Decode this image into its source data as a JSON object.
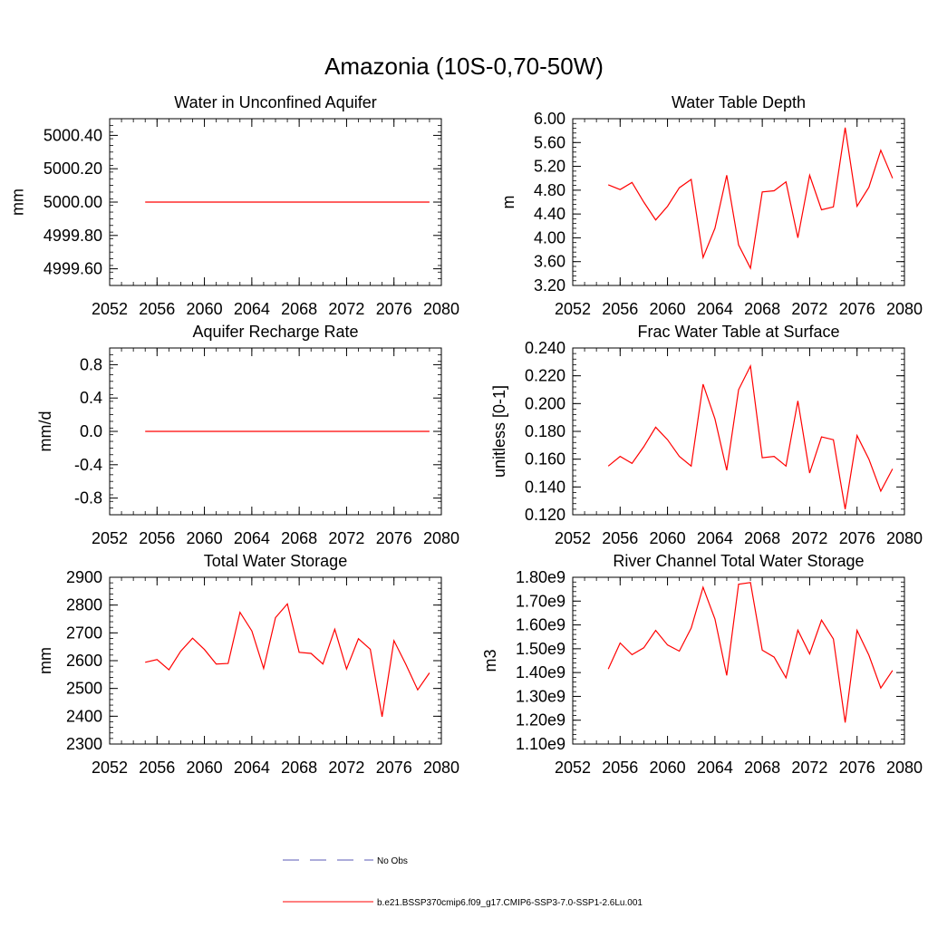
{
  "figure_title": "Amazonia (10S-0,70-50W)",
  "legend": {
    "entries": [
      {
        "label": "No Obs",
        "style": "dashed",
        "color": "#5a5ab4"
      },
      {
        "label": "b.e21.BSSP370cmip6.f09_g17.CMIP6-SSP3-7.0-SSP1-2.6Lu.001",
        "style": "solid",
        "color": "#ff0000"
      }
    ]
  },
  "chart_data": [
    {
      "type": "line",
      "title": "Water in Unconfined Aquifer",
      "ylabel": "mm",
      "xlim": [
        2052,
        2080
      ],
      "ylim": [
        4999.5,
        5000.5
      ],
      "xticks": [
        2052,
        2056,
        2060,
        2064,
        2068,
        2072,
        2076,
        2080
      ],
      "xtick_labels": [
        "2052",
        "2056",
        "2060",
        "2064",
        "2068",
        "2072",
        "2076",
        "2080"
      ],
      "yticks": [
        4999.6,
        4999.8,
        5000.0,
        5000.2,
        5000.4
      ],
      "ytick_labels": [
        "4999.60",
        "4999.80",
        "5000.00",
        "5000.20",
        "5000.40"
      ],
      "series": [
        {
          "color": "#ff0000",
          "x": [
            2055,
            2056,
            2057,
            2058,
            2059,
            2060,
            2061,
            2062,
            2063,
            2064,
            2065,
            2066,
            2067,
            2068,
            2069,
            2070,
            2071,
            2072,
            2073,
            2074,
            2075,
            2076,
            2077,
            2078,
            2079
          ],
          "values": [
            5000,
            5000,
            5000,
            5000,
            5000,
            5000,
            5000,
            5000,
            5000,
            5000,
            5000,
            5000,
            5000,
            5000,
            5000,
            5000,
            5000,
            5000,
            5000,
            5000,
            5000,
            5000,
            5000,
            5000,
            5000
          ]
        }
      ]
    },
    {
      "type": "line",
      "title": "Water Table Depth",
      "ylabel": "m",
      "xlim": [
        2052,
        2080
      ],
      "ylim": [
        3.2,
        6.0
      ],
      "xticks": [
        2052,
        2056,
        2060,
        2064,
        2068,
        2072,
        2076,
        2080
      ],
      "xtick_labels": [
        "2052",
        "2056",
        "2060",
        "2064",
        "2068",
        "2072",
        "2076",
        "2080"
      ],
      "yticks": [
        3.2,
        3.6,
        4.0,
        4.4,
        4.8,
        5.2,
        5.6,
        6.0
      ],
      "ytick_labels": [
        "3.20",
        "3.60",
        "4.00",
        "4.40",
        "4.80",
        "5.20",
        "5.60",
        "6.00"
      ],
      "series": [
        {
          "color": "#ff0000",
          "x": [
            2055,
            2056,
            2057,
            2058,
            2059,
            2060,
            2061,
            2062,
            2063,
            2064,
            2065,
            2066,
            2067,
            2068,
            2069,
            2070,
            2071,
            2072,
            2073,
            2074,
            2075,
            2076,
            2077,
            2078,
            2079
          ],
          "values": [
            4.89,
            4.81,
            4.93,
            4.6,
            4.3,
            4.53,
            4.84,
            4.98,
            3.67,
            4.16,
            5.05,
            3.88,
            3.49,
            4.77,
            4.79,
            4.94,
            4.0,
            5.05,
            4.47,
            4.52,
            5.85,
            4.53,
            4.85,
            5.47,
            5.0
          ]
        }
      ]
    },
    {
      "type": "line",
      "title": "Aquifer Recharge Rate",
      "ylabel": "mm/d",
      "xlim": [
        2052,
        2080
      ],
      "ylim": [
        -1.0,
        1.0
      ],
      "xticks": [
        2052,
        2056,
        2060,
        2064,
        2068,
        2072,
        2076,
        2080
      ],
      "xtick_labels": [
        "2052",
        "2056",
        "2060",
        "2064",
        "2068",
        "2072",
        "2076",
        "2080"
      ],
      "yticks": [
        -0.8,
        -0.4,
        0.0,
        0.4,
        0.8
      ],
      "ytick_labels": [
        "-0.8",
        "-0.4",
        "0.0",
        "0.4",
        "0.8"
      ],
      "series": [
        {
          "color": "#ff0000",
          "x": [
            2055,
            2056,
            2057,
            2058,
            2059,
            2060,
            2061,
            2062,
            2063,
            2064,
            2065,
            2066,
            2067,
            2068,
            2069,
            2070,
            2071,
            2072,
            2073,
            2074,
            2075,
            2076,
            2077,
            2078,
            2079
          ],
          "values": [
            0,
            0,
            0,
            0,
            0,
            0,
            0,
            0,
            0,
            0,
            0,
            0,
            0,
            0,
            0,
            0,
            0,
            0,
            0,
            0,
            0,
            0,
            0,
            0,
            0
          ]
        }
      ]
    },
    {
      "type": "line",
      "title": "Frac Water Table at Surface",
      "ylabel": "unitless [0-1]",
      "xlim": [
        2052,
        2080
      ],
      "ylim": [
        0.12,
        0.24
      ],
      "xticks": [
        2052,
        2056,
        2060,
        2064,
        2068,
        2072,
        2076,
        2080
      ],
      "xtick_labels": [
        "2052",
        "2056",
        "2060",
        "2064",
        "2068",
        "2072",
        "2076",
        "2080"
      ],
      "yticks": [
        0.12,
        0.14,
        0.16,
        0.18,
        0.2,
        0.22,
        0.24
      ],
      "ytick_labels": [
        "0.120",
        "0.140",
        "0.160",
        "0.180",
        "0.200",
        "0.220",
        "0.240"
      ],
      "series": [
        {
          "color": "#ff0000",
          "x": [
            2055,
            2056,
            2057,
            2058,
            2059,
            2060,
            2061,
            2062,
            2063,
            2064,
            2065,
            2066,
            2067,
            2068,
            2069,
            2070,
            2071,
            2072,
            2073,
            2074,
            2075,
            2076,
            2077,
            2078,
            2079
          ],
          "values": [
            0.155,
            0.162,
            0.157,
            0.169,
            0.183,
            0.174,
            0.162,
            0.155,
            0.214,
            0.189,
            0.152,
            0.21,
            0.227,
            0.161,
            0.162,
            0.155,
            0.202,
            0.15,
            0.176,
            0.174,
            0.124,
            0.177,
            0.16,
            0.137,
            0.153
          ]
        }
      ]
    },
    {
      "type": "line",
      "title": "Total Water Storage",
      "ylabel": "mm",
      "xlim": [
        2052,
        2080
      ],
      "ylim": [
        2300,
        2900
      ],
      "xticks": [
        2052,
        2056,
        2060,
        2064,
        2068,
        2072,
        2076,
        2080
      ],
      "xtick_labels": [
        "2052",
        "2056",
        "2060",
        "2064",
        "2068",
        "2072",
        "2076",
        "2080"
      ],
      "yticks": [
        2300,
        2400,
        2500,
        2600,
        2700,
        2800,
        2900
      ],
      "ytick_labels": [
        "2300",
        "2400",
        "2500",
        "2600",
        "2700",
        "2800",
        "2900"
      ],
      "series": [
        {
          "color": "#ff0000",
          "x": [
            2055,
            2056,
            2057,
            2058,
            2059,
            2060,
            2061,
            2062,
            2063,
            2064,
            2065,
            2066,
            2067,
            2068,
            2069,
            2070,
            2071,
            2072,
            2073,
            2074,
            2075,
            2076,
            2077,
            2078,
            2079
          ],
          "values": [
            2594,
            2604,
            2567,
            2634,
            2681,
            2640,
            2588,
            2590,
            2774,
            2707,
            2572,
            2755,
            2804,
            2630,
            2626,
            2588,
            2713,
            2570,
            2679,
            2641,
            2398,
            2672,
            2587,
            2495,
            2556
          ]
        }
      ]
    },
    {
      "type": "line",
      "title": "River Channel Total Water Storage",
      "ylabel": "m3",
      "xlim": [
        2052,
        2080
      ],
      "ylim": [
        1100000000.0,
        1800000000.0
      ],
      "xticks": [
        2052,
        2056,
        2060,
        2064,
        2068,
        2072,
        2076,
        2080
      ],
      "xtick_labels": [
        "2052",
        "2056",
        "2060",
        "2064",
        "2068",
        "2072",
        "2076",
        "2080"
      ],
      "yticks": [
        1100000000.0,
        1200000000.0,
        1300000000.0,
        1400000000.0,
        1500000000.0,
        1600000000.0,
        1700000000.0,
        1800000000.0
      ],
      "ytick_labels": [
        "1.10e9",
        "1.20e9",
        "1.30e9",
        "1.40e9",
        "1.50e9",
        "1.60e9",
        "1.70e9",
        "1.80e9"
      ],
      "series": [
        {
          "color": "#ff0000",
          "x": [
            2055,
            2056,
            2057,
            2058,
            2059,
            2060,
            2061,
            2062,
            2063,
            2064,
            2065,
            2066,
            2067,
            2068,
            2069,
            2070,
            2071,
            2072,
            2073,
            2074,
            2075,
            2076,
            2077,
            2078,
            2079
          ],
          "values": [
            1415000000.0,
            1524000000.0,
            1475000000.0,
            1504000000.0,
            1577000000.0,
            1516000000.0,
            1490000000.0,
            1587000000.0,
            1758000000.0,
            1625000000.0,
            1388000000.0,
            1771000000.0,
            1778000000.0,
            1494000000.0,
            1465000000.0,
            1378000000.0,
            1578000000.0,
            1478000000.0,
            1620000000.0,
            1541000000.0,
            1190000000.0,
            1577000000.0,
            1473000000.0,
            1335000000.0,
            1409000000.0
          ]
        }
      ]
    }
  ]
}
